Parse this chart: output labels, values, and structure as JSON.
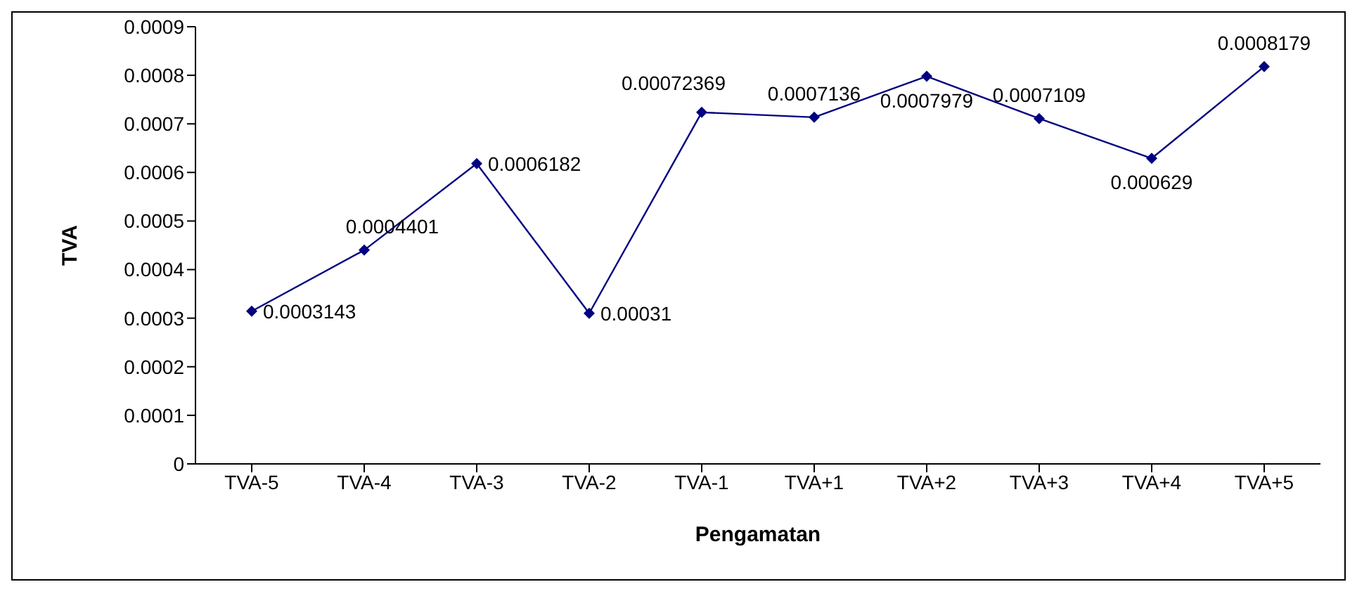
{
  "chart_data": {
    "type": "line",
    "xlabel": "Pengamatan",
    "ylabel": "TVA",
    "categories": [
      "TVA-5",
      "TVA-4",
      "TVA-3",
      "TVA-2",
      "TVA-1",
      "TVA+1",
      "TVA+2",
      "TVA+3",
      "TVA+4",
      "TVA+5"
    ],
    "series": [
      {
        "color": "#000080",
        "values": [
          0.0003143,
          0.0004401,
          0.0006182,
          0.00031,
          0.00072369,
          0.0007136,
          0.0007979,
          0.0007109,
          0.000629,
          0.0008179
        ]
      }
    ],
    "ylim": [
      0,
      0.0009
    ],
    "yticks": [
      0,
      0.0001,
      0.0002,
      0.0003,
      0.0004,
      0.0005,
      0.0006,
      0.0007,
      0.0008,
      0.0009
    ],
    "grid": false,
    "marker": "diamond",
    "line_style": "solid",
    "data_labels": true
  }
}
